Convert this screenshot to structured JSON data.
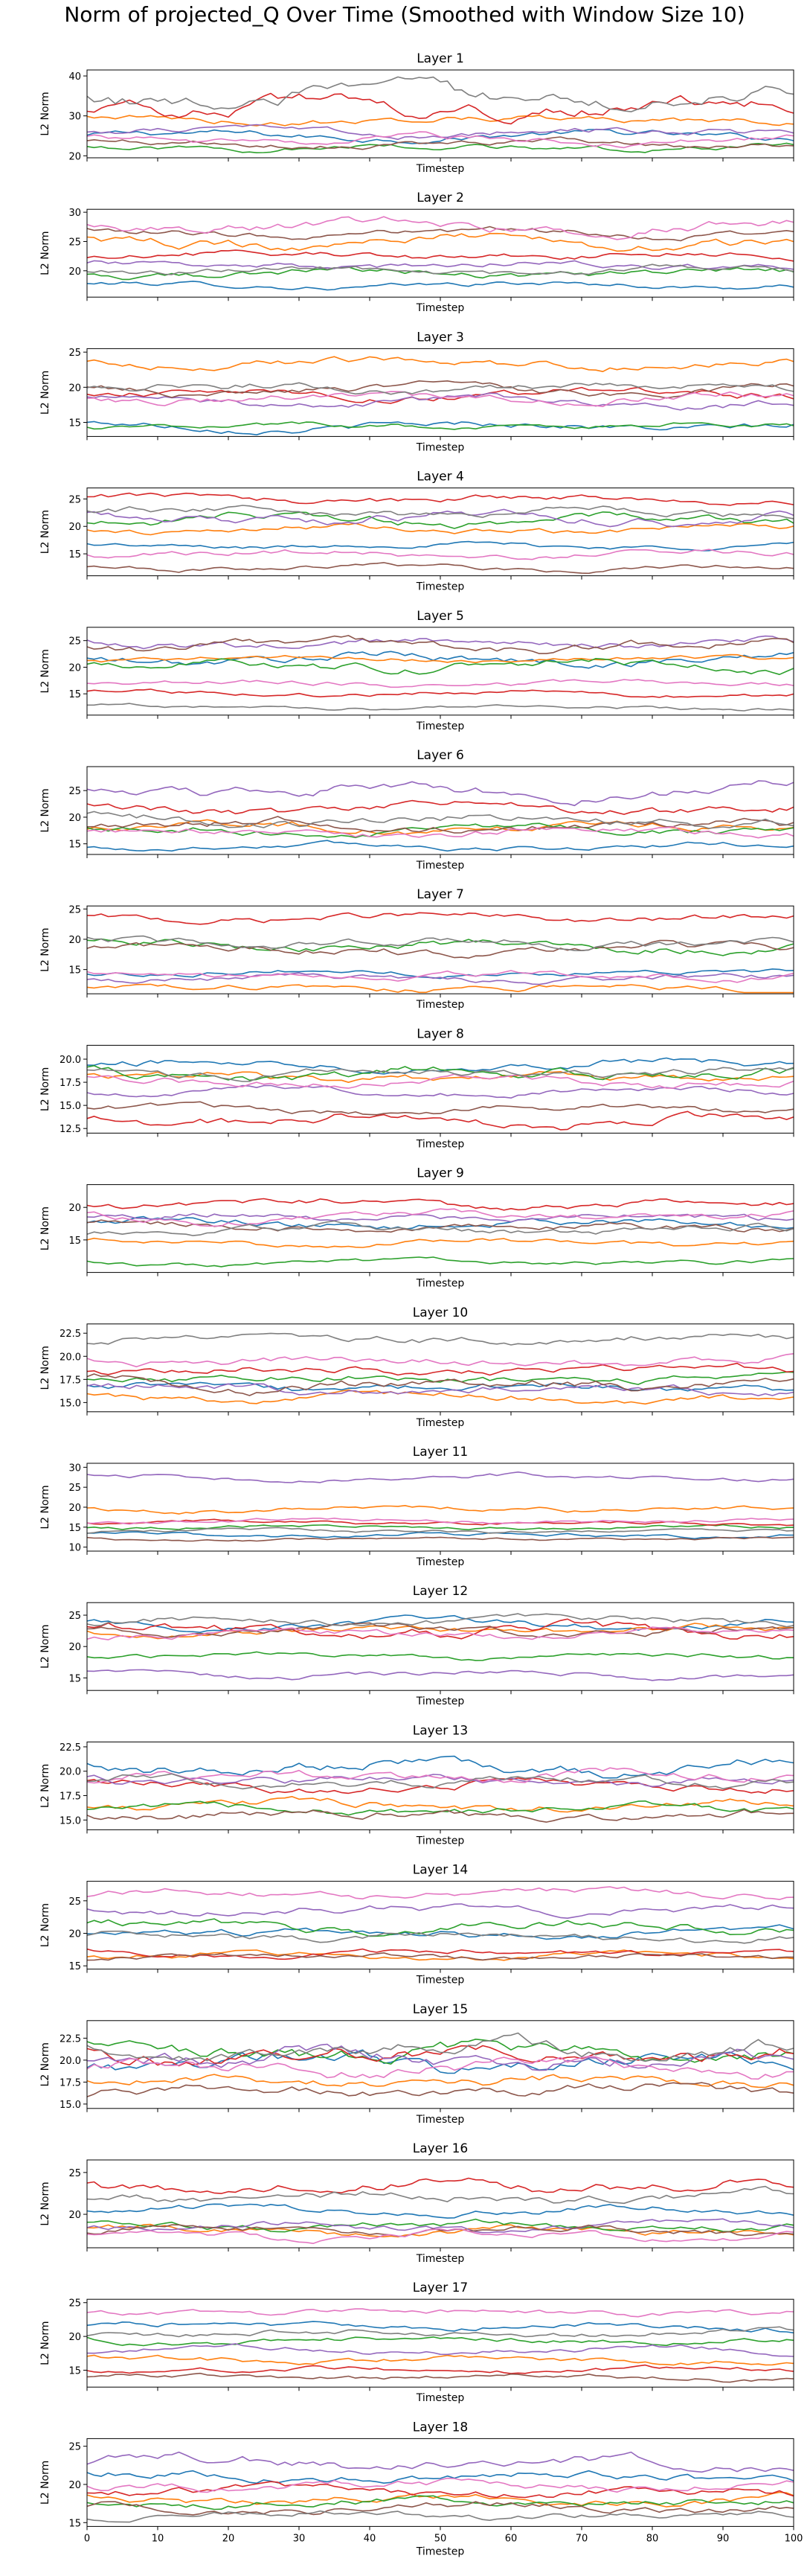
{
  "figure": {
    "title": "Norm of projected_Q Over Time (Smoothed with Window Size 10)"
  },
  "series_colors": [
    "#1f77b4",
    "#ff7f0e",
    "#2ca02c",
    "#d62728",
    "#9467bd",
    "#8c564b",
    "#e377c2",
    "#7f7f7f"
  ],
  "chart_data": [
    {
      "type": "line",
      "title": "Layer 1",
      "xlabel": "Timestep",
      "ylabel": "L2 Norm",
      "xlim": [
        0,
        100
      ],
      "ylim": [
        19.5,
        41.5
      ],
      "yticks": [
        20,
        30,
        40
      ],
      "yticklabels": [
        "20",
        "30",
        "40"
      ],
      "xticks": [
        0,
        10,
        20,
        30,
        40,
        50,
        60,
        70,
        80,
        90,
        100
      ],
      "xticklabels": [
        "0",
        "10",
        "20",
        "30",
        "40",
        "50",
        "60",
        "70",
        "80",
        "90",
        "100"
      ],
      "xticklabels_visible": false,
      "levels": [
        25,
        29,
        22,
        32,
        26,
        23,
        24,
        35
      ],
      "amp": [
        1.2,
        1.2,
        1.0,
        2.5,
        1.2,
        1.0,
        1.2,
        3.0
      ]
    },
    {
      "type": "line",
      "title": "Layer 2",
      "xlabel": "Timestep",
      "ylabel": "L2 Norm",
      "xlim": [
        0,
        100
      ],
      "ylim": [
        15.5,
        30.5
      ],
      "yticks": [
        20,
        25,
        30
      ],
      "yticklabels": [
        "20",
        "25",
        "30"
      ],
      "xticks": [
        0,
        10,
        20,
        30,
        40,
        50,
        60,
        70,
        80,
        90,
        100
      ],
      "xticklabels": [
        "0",
        "10",
        "20",
        "30",
        "40",
        "50",
        "60",
        "70",
        "80",
        "90",
        "100"
      ],
      "xticklabels_visible": false,
      "levels": [
        17.5,
        25,
        19.5,
        22.5,
        21,
        26.5,
        27.5,
        20
      ],
      "amp": [
        0.6,
        1.2,
        0.8,
        0.8,
        0.8,
        0.8,
        1.2,
        0.8
      ]
    },
    {
      "type": "line",
      "title": "Layer 3",
      "xlabel": "Timestep",
      "ylabel": "L2 Norm",
      "xlim": [
        0,
        100
      ],
      "ylim": [
        13,
        25.5
      ],
      "yticks": [
        15,
        20,
        25
      ],
      "yticklabels": [
        "15",
        "20",
        "25"
      ],
      "xticks": [
        0,
        10,
        20,
        30,
        40,
        50,
        60,
        70,
        80,
        90,
        100
      ],
      "xticklabels": [
        "0",
        "10",
        "20",
        "30",
        "40",
        "50",
        "60",
        "70",
        "80",
        "90",
        "100"
      ],
      "xticklabels_visible": false,
      "levels": [
        14.5,
        23.5,
        14.5,
        19,
        18,
        19.5,
        18.5,
        20
      ],
      "amp": [
        0.7,
        0.8,
        0.5,
        0.8,
        0.8,
        0.8,
        0.8,
        0.8
      ]
    },
    {
      "type": "line",
      "title": "Layer 4",
      "xlabel": "Timestep",
      "ylabel": "L2 Norm",
      "xlim": [
        0,
        100
      ],
      "ylim": [
        11,
        27
      ],
      "yticks": [
        15,
        20,
        25
      ],
      "yticklabels": [
        "15",
        "20",
        "25"
      ],
      "xticks": [
        0,
        10,
        20,
        30,
        40,
        50,
        60,
        70,
        80,
        90,
        100
      ],
      "xticklabels": [
        "0",
        "10",
        "20",
        "30",
        "40",
        "50",
        "60",
        "70",
        "80",
        "90",
        "100"
      ],
      "xticklabels_visible": false,
      "levels": [
        16.5,
        19.5,
        21,
        25,
        21.5,
        12.5,
        15,
        22.5
      ],
      "amp": [
        0.6,
        0.8,
        1.2,
        0.8,
        1.2,
        0.6,
        0.8,
        1.0
      ]
    },
    {
      "type": "line",
      "title": "Layer 5",
      "xlabel": "Timestep",
      "ylabel": "L2 Norm",
      "xlim": [
        0,
        100
      ],
      "ylim": [
        11,
        27.5
      ],
      "yticks": [
        15,
        20,
        25
      ],
      "yticklabels": [
        "15",
        "20",
        "25"
      ],
      "xticks": [
        0,
        10,
        20,
        30,
        40,
        50,
        60,
        70,
        80,
        90,
        100
      ],
      "xticklabels": [
        "0",
        "10",
        "20",
        "30",
        "40",
        "50",
        "60",
        "70",
        "80",
        "90",
        "100"
      ],
      "xticklabels_visible": false,
      "levels": [
        21.5,
        21.5,
        20.5,
        15,
        24.5,
        24,
        17,
        12.5
      ],
      "amp": [
        1.2,
        0.6,
        1.2,
        0.6,
        1.0,
        1.2,
        0.6,
        0.5
      ]
    },
    {
      "type": "line",
      "title": "Layer 6",
      "xlabel": "Timestep",
      "ylabel": "L2 Norm",
      "xlim": [
        0,
        100
      ],
      "ylim": [
        13,
        29.5
      ],
      "yticks": [
        15,
        20,
        25
      ],
      "yticklabels": [
        "15",
        "20",
        "25"
      ],
      "xticks": [
        0,
        10,
        20,
        30,
        40,
        50,
        60,
        70,
        80,
        90,
        100
      ],
      "xticklabels": [
        "0",
        "10",
        "20",
        "30",
        "40",
        "50",
        "60",
        "70",
        "80",
        "90",
        "100"
      ],
      "xticklabels_visible": false,
      "levels": [
        14.5,
        18,
        17.5,
        21.5,
        25,
        18.5,
        17,
        19.5
      ],
      "amp": [
        0.7,
        1.0,
        1.0,
        1.2,
        1.5,
        1.2,
        1.0,
        1.2
      ]
    },
    {
      "type": "line",
      "title": "Layer 7",
      "xlabel": "Timestep",
      "ylabel": "L2 Norm",
      "xlim": [
        0,
        100
      ],
      "ylim": [
        11,
        25.5
      ],
      "yticks": [
        15,
        20,
        25
      ],
      "yticklabels": [
        "15",
        "20",
        "25"
      ],
      "xticks": [
        0,
        10,
        20,
        30,
        40,
        50,
        60,
        70,
        80,
        90,
        100
      ],
      "xticklabels": [
        "0",
        "10",
        "20",
        "30",
        "40",
        "50",
        "60",
        "70",
        "80",
        "90",
        "100"
      ],
      "xticklabels_visible": false,
      "levels": [
        14.5,
        12,
        19,
        23.5,
        13.5,
        18.5,
        14,
        19.5
      ],
      "amp": [
        0.6,
        0.7,
        1.0,
        0.8,
        0.7,
        1.0,
        0.8,
        0.9
      ]
    },
    {
      "type": "line",
      "title": "Layer 8",
      "xlabel": "Timestep",
      "ylabel": "L2 Norm",
      "xlim": [
        0,
        100
      ],
      "ylim": [
        12,
        21.5
      ],
      "yticks": [
        12.5,
        15.0,
        17.5,
        20.0
      ],
      "yticklabels": [
        "12.5",
        "15.0",
        "17.5",
        "20.0"
      ],
      "xticks": [
        0,
        10,
        20,
        30,
        40,
        50,
        60,
        70,
        80,
        90,
        100
      ],
      "xticklabels": [
        "0",
        "10",
        "20",
        "30",
        "40",
        "50",
        "60",
        "70",
        "80",
        "90",
        "100"
      ],
      "xticklabels_visible": false,
      "levels": [
        19.5,
        18,
        18.5,
        13.5,
        16.5,
        14.5,
        17.5,
        18.5
      ],
      "amp": [
        0.6,
        0.6,
        0.8,
        0.8,
        0.5,
        0.5,
        0.6,
        0.6
      ]
    },
    {
      "type": "line",
      "title": "Layer 9",
      "xlabel": "Timestep",
      "ylabel": "L2 Norm",
      "xlim": [
        0,
        100
      ],
      "ylim": [
        10,
        23.5
      ],
      "yticks": [
        15,
        20
      ],
      "yticklabels": [
        "15",
        "20"
      ],
      "xticks": [
        0,
        10,
        20,
        30,
        40,
        50,
        60,
        70,
        80,
        90,
        100
      ],
      "xticklabels": [
        "0",
        "10",
        "20",
        "30",
        "40",
        "50",
        "60",
        "70",
        "80",
        "90",
        "100"
      ],
      "xticklabels_visible": false,
      "levels": [
        17.5,
        14.5,
        11.5,
        20.5,
        18.5,
        17,
        18.5,
        16.5
      ],
      "amp": [
        0.8,
        0.6,
        0.5,
        0.8,
        0.8,
        0.8,
        0.8,
        0.8
      ]
    },
    {
      "type": "line",
      "title": "Layer 10",
      "xlabel": "Timestep",
      "ylabel": "L2 Norm",
      "xlim": [
        0,
        100
      ],
      "ylim": [
        14,
        23.5
      ],
      "yticks": [
        15.0,
        17.5,
        20.0,
        22.5
      ],
      "yticklabels": [
        "15.0",
        "17.5",
        "20.0",
        "22.5"
      ],
      "xticks": [
        0,
        10,
        20,
        30,
        40,
        50,
        60,
        70,
        80,
        90,
        100
      ],
      "xticklabels": [
        "0",
        "10",
        "20",
        "30",
        "40",
        "50",
        "60",
        "70",
        "80",
        "90",
        "100"
      ],
      "xticklabels_visible": false,
      "levels": [
        16.5,
        15.5,
        17.5,
        18.5,
        16.5,
        17,
        19.5,
        22
      ],
      "amp": [
        0.6,
        0.6,
        0.6,
        0.6,
        0.6,
        0.8,
        0.6,
        0.6
      ]
    },
    {
      "type": "line",
      "title": "Layer 11",
      "xlabel": "Timestep",
      "ylabel": "L2 Norm",
      "xlim": [
        0,
        100
      ],
      "ylim": [
        9,
        31
      ],
      "yticks": [
        10,
        15,
        20,
        25,
        30
      ],
      "yticklabels": [
        "10",
        "15",
        "20",
        "25",
        "30"
      ],
      "xticks": [
        0,
        10,
        20,
        30,
        40,
        50,
        60,
        70,
        80,
        90,
        100
      ],
      "xticklabels": [
        "0",
        "10",
        "20",
        "30",
        "40",
        "50",
        "60",
        "70",
        "80",
        "90",
        "100"
      ],
      "xticklabels_visible": false,
      "levels": [
        13,
        19.5,
        15,
        16,
        27.5,
        12,
        16.5,
        14
      ],
      "amp": [
        0.6,
        0.8,
        0.6,
        0.6,
        0.8,
        0.5,
        0.6,
        0.6
      ]
    },
    {
      "type": "line",
      "title": "Layer 12",
      "xlabel": "Timestep",
      "ylabel": "L2 Norm",
      "xlim": [
        0,
        100
      ],
      "ylim": [
        13,
        27
      ],
      "yticks": [
        15,
        20,
        25
      ],
      "yticklabels": [
        "15",
        "20",
        "25"
      ],
      "xticks": [
        0,
        10,
        20,
        30,
        40,
        50,
        60,
        70,
        80,
        90,
        100
      ],
      "xticklabels": [
        "0",
        "10",
        "20",
        "30",
        "40",
        "50",
        "60",
        "70",
        "80",
        "90",
        "100"
      ],
      "xticklabels_visible": false,
      "levels": [
        23.5,
        22.5,
        18.5,
        22.5,
        15.5,
        22.5,
        22,
        24
      ],
      "amp": [
        0.8,
        0.8,
        0.6,
        1.2,
        0.6,
        0.8,
        0.8,
        0.8
      ]
    },
    {
      "type": "line",
      "title": "Layer 13",
      "xlabel": "Timestep",
      "ylabel": "L2 Norm",
      "xlim": [
        0,
        100
      ],
      "ylim": [
        14,
        23
      ],
      "yticks": [
        15.0,
        17.5,
        20.0,
        22.5
      ],
      "yticklabels": [
        "15.0",
        "17.5",
        "20.0",
        "22.5"
      ],
      "xticks": [
        0,
        10,
        20,
        30,
        40,
        50,
        60,
        70,
        80,
        90,
        100
      ],
      "xticklabels": [
        "0",
        "10",
        "20",
        "30",
        "40",
        "50",
        "60",
        "70",
        "80",
        "90",
        "100"
      ],
      "xticklabels_visible": false,
      "levels": [
        20.5,
        16.5,
        16,
        18.5,
        19,
        15.5,
        19.5,
        19
      ],
      "amp": [
        0.9,
        0.6,
        0.6,
        0.6,
        0.6,
        0.6,
        0.7,
        0.6
      ]
    },
    {
      "type": "line",
      "title": "Layer 14",
      "xlabel": "Timestep",
      "ylabel": "L2 Norm",
      "xlim": [
        0,
        100
      ],
      "ylim": [
        14.5,
        28
      ],
      "yticks": [
        15,
        20,
        25
      ],
      "yticklabels": [
        "15",
        "20",
        "25"
      ],
      "xticks": [
        0,
        10,
        20,
        30,
        40,
        50,
        60,
        70,
        80,
        90,
        100
      ],
      "xticklabels": [
        "0",
        "10",
        "20",
        "30",
        "40",
        "50",
        "60",
        "70",
        "80",
        "90",
        "100"
      ],
      "xticklabels_visible": false,
      "levels": [
        20,
        16.5,
        21,
        17,
        23.5,
        16.5,
        26,
        19.5
      ],
      "amp": [
        0.8,
        0.6,
        1.0,
        0.6,
        0.8,
        0.6,
        0.8,
        0.8
      ]
    },
    {
      "type": "line",
      "title": "Layer 15",
      "xlabel": "Timestep",
      "ylabel": "L2 Norm",
      "xlim": [
        0,
        100
      ],
      "ylim": [
        14.5,
        24.5
      ],
      "yticks": [
        15.0,
        17.5,
        20.0,
        22.5
      ],
      "yticklabels": [
        "15.0",
        "17.5",
        "20.0",
        "22.5"
      ],
      "xticks": [
        0,
        10,
        20,
        30,
        40,
        50,
        60,
        70,
        80,
        90,
        100
      ],
      "xticklabels": [
        "0",
        "10",
        "20",
        "30",
        "40",
        "50",
        "60",
        "70",
        "80",
        "90",
        "100"
      ],
      "xticklabels_visible": false,
      "levels": [
        19.5,
        17.5,
        21,
        20.5,
        20,
        16.5,
        19,
        21.5
      ],
      "amp": [
        1.2,
        0.8,
        1.2,
        1.2,
        1.2,
        0.8,
        1.0,
        1.2
      ]
    },
    {
      "type": "line",
      "title": "Layer 16",
      "xlabel": "Timestep",
      "ylabel": "L2 Norm",
      "xlim": [
        0,
        100
      ],
      "ylim": [
        16,
        26.5
      ],
      "yticks": [
        20,
        25
      ],
      "yticklabels": [
        "20",
        "25"
      ],
      "xticks": [
        0,
        10,
        20,
        30,
        40,
        50,
        60,
        70,
        80,
        90,
        100
      ],
      "xticklabels": [
        "0",
        "10",
        "20",
        "30",
        "40",
        "50",
        "60",
        "70",
        "80",
        "90",
        "100"
      ],
      "xticklabels_visible": false,
      "levels": [
        20.5,
        18,
        18.5,
        23.5,
        18.5,
        18,
        17.5,
        22
      ],
      "amp": [
        0.6,
        0.6,
        0.6,
        1.0,
        0.6,
        0.6,
        0.6,
        0.8
      ]
    },
    {
      "type": "line",
      "title": "Layer 17",
      "xlabel": "Timestep",
      "ylabel": "L2 Norm",
      "xlim": [
        0,
        100
      ],
      "ylim": [
        12.5,
        25.5
      ],
      "yticks": [
        15,
        20,
        25
      ],
      "yticklabels": [
        "15",
        "20",
        "25"
      ],
      "xticks": [
        0,
        10,
        20,
        30,
        40,
        50,
        60,
        70,
        80,
        90,
        100
      ],
      "xticklabels": [
        "0",
        "10",
        "20",
        "30",
        "40",
        "50",
        "60",
        "70",
        "80",
        "90",
        "100"
      ],
      "xticklabels_visible": false,
      "levels": [
        21.5,
        16.5,
        19.5,
        15,
        18,
        14,
        23.5,
        20.5
      ],
      "amp": [
        0.6,
        0.6,
        0.6,
        0.5,
        0.6,
        0.5,
        0.6,
        0.6
      ]
    },
    {
      "type": "line",
      "title": "Layer 18",
      "xlabel": "Timestep",
      "ylabel": "L2 Norm",
      "xlim": [
        0,
        100
      ],
      "ylim": [
        14.5,
        26
      ],
      "yticks": [
        15,
        20,
        25
      ],
      "yticklabels": [
        "15",
        "20",
        "25"
      ],
      "xticks": [
        0,
        10,
        20,
        30,
        40,
        50,
        60,
        70,
        80,
        90,
        100
      ],
      "xticklabels": [
        "0",
        "10",
        "20",
        "30",
        "40",
        "50",
        "60",
        "70",
        "80",
        "90",
        "100"
      ],
      "xticklabels_visible": true,
      "levels": [
        21,
        18,
        17.5,
        19,
        23,
        17,
        20,
        16
      ],
      "amp": [
        0.8,
        0.7,
        0.7,
        0.8,
        1.0,
        0.7,
        0.8,
        0.6
      ]
    }
  ]
}
